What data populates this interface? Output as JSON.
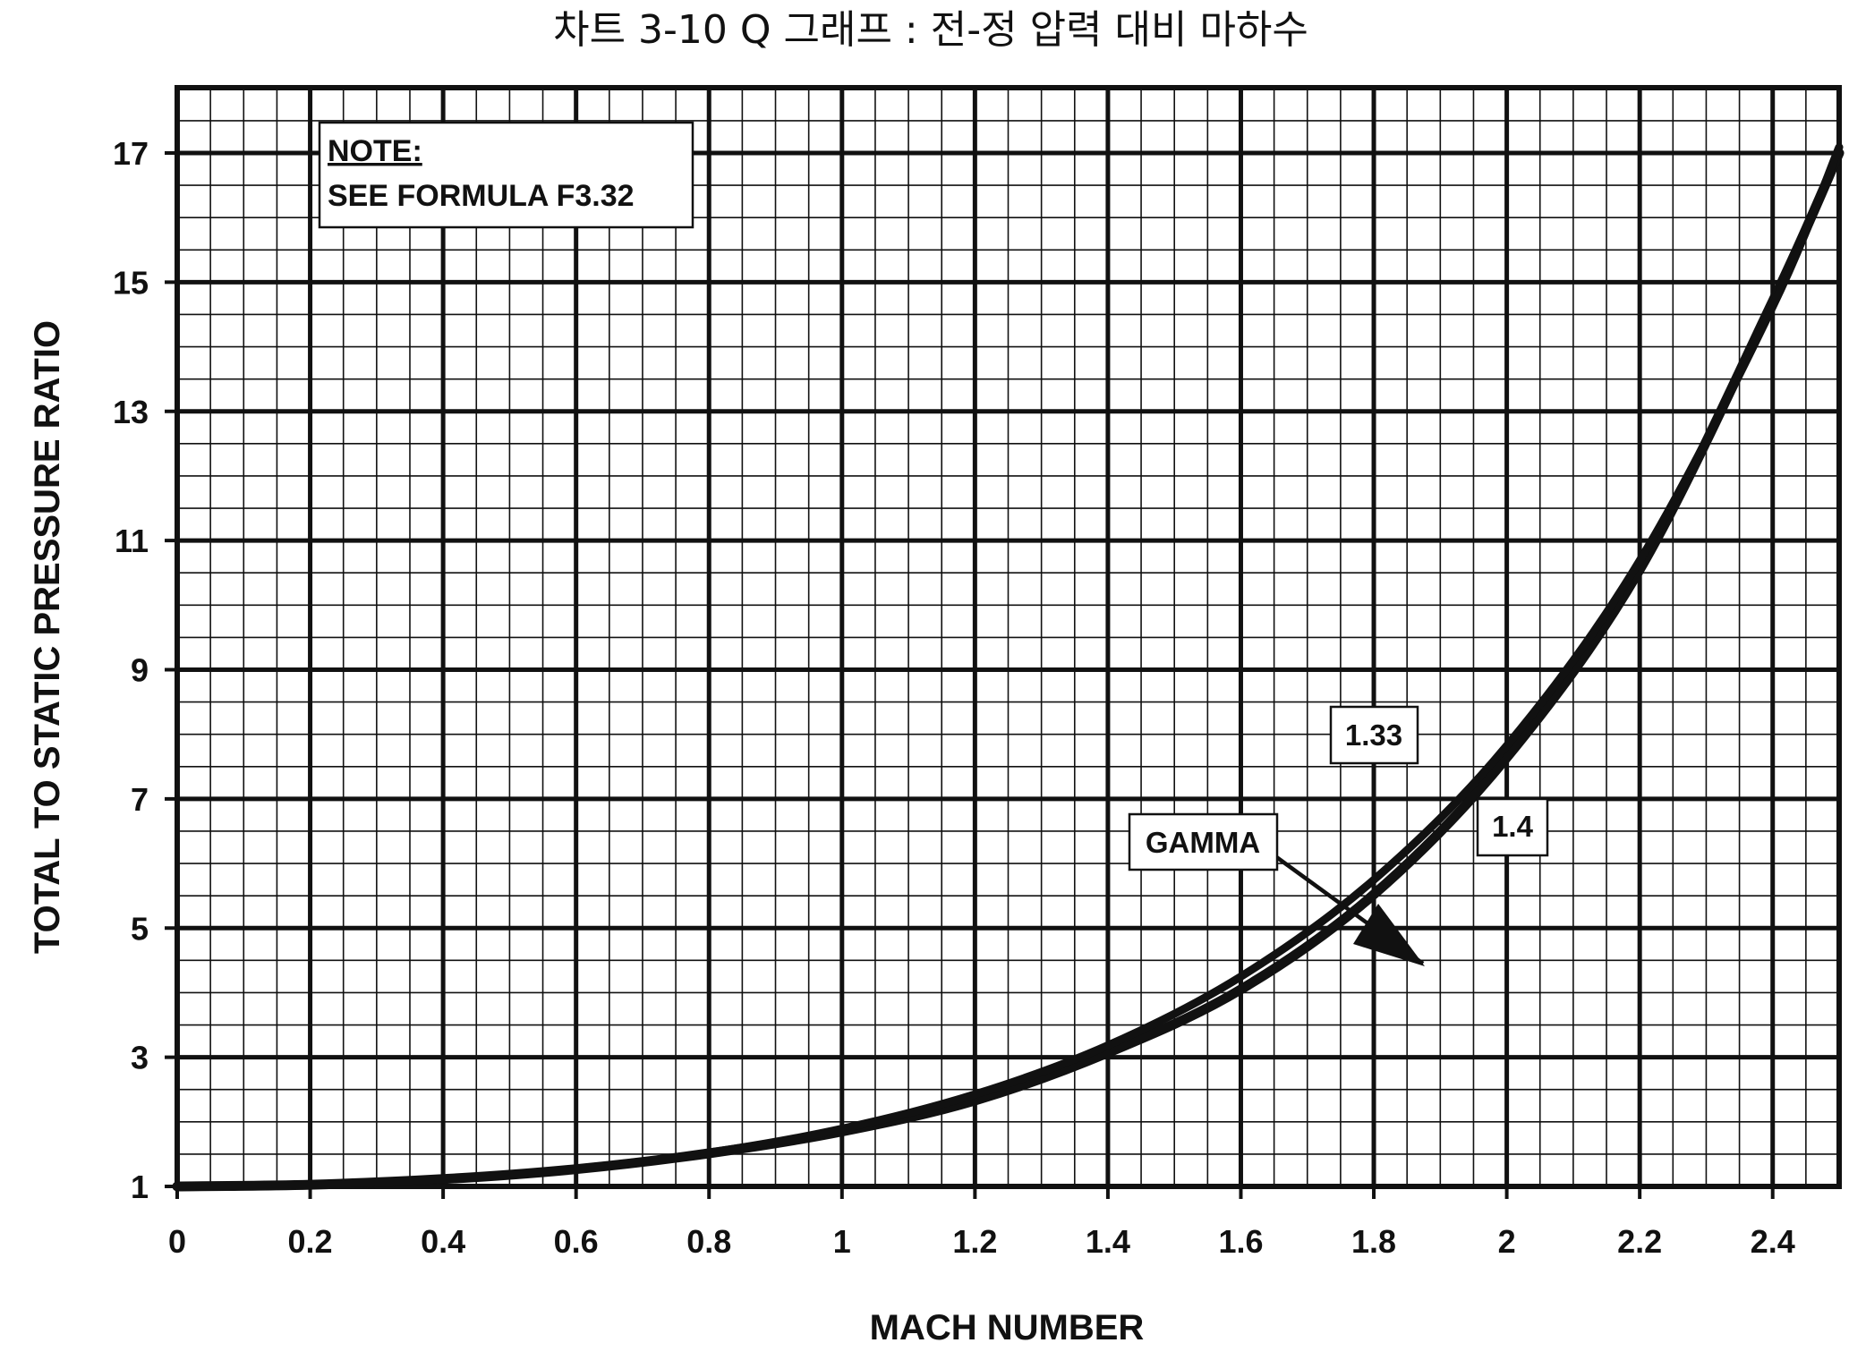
{
  "chart_data": {
    "type": "line",
    "title": "차트 3-10 Q 그래프 : 전-정 압력 대비 마하수",
    "xlabel": "MACH NUMBER",
    "ylabel": "TOTAL TO STATIC PRESSURE RATIO",
    "xlim": [
      0,
      2.5
    ],
    "ylim": [
      1,
      18
    ],
    "xticks": [
      "0",
      "0.2",
      "0.4",
      "0.6",
      "0.8",
      "1",
      "1.2",
      "1.4",
      "1.6",
      "1.8",
      "2",
      "2.2",
      "2.4"
    ],
    "yticks": [
      "1",
      "3",
      "5",
      "7",
      "9",
      "11",
      "13",
      "15",
      "17"
    ],
    "grid": true,
    "series": [
      {
        "name": "1.33",
        "x": [
          0,
          0.2,
          0.4,
          0.6,
          0.8,
          1.0,
          1.2,
          1.4,
          1.6,
          1.8,
          2.0,
          2.2,
          2.4,
          2.5
        ],
        "y": [
          1.0,
          1.027,
          1.113,
          1.267,
          1.513,
          1.85,
          2.33,
          3.07,
          4.05,
          5.52,
          7.64,
          10.55,
          14.7,
          17.0
        ]
      },
      {
        "name": "1.4",
        "x": [
          0,
          0.2,
          0.4,
          0.6,
          0.8,
          1.0,
          1.2,
          1.4,
          1.6,
          1.8,
          2.0,
          2.2,
          2.4,
          2.5
        ],
        "y": [
          1.0,
          1.028,
          1.117,
          1.276,
          1.524,
          1.893,
          2.425,
          3.183,
          4.25,
          5.746,
          7.824,
          10.69,
          14.62,
          17.09
        ]
      }
    ],
    "annotations": {
      "note_heading": "NOTE:",
      "note_body": "SEE FORMULA F3.32",
      "gamma_label": "GAMMA",
      "gamma_133": "1.33",
      "gamma_14": "1.4"
    }
  }
}
